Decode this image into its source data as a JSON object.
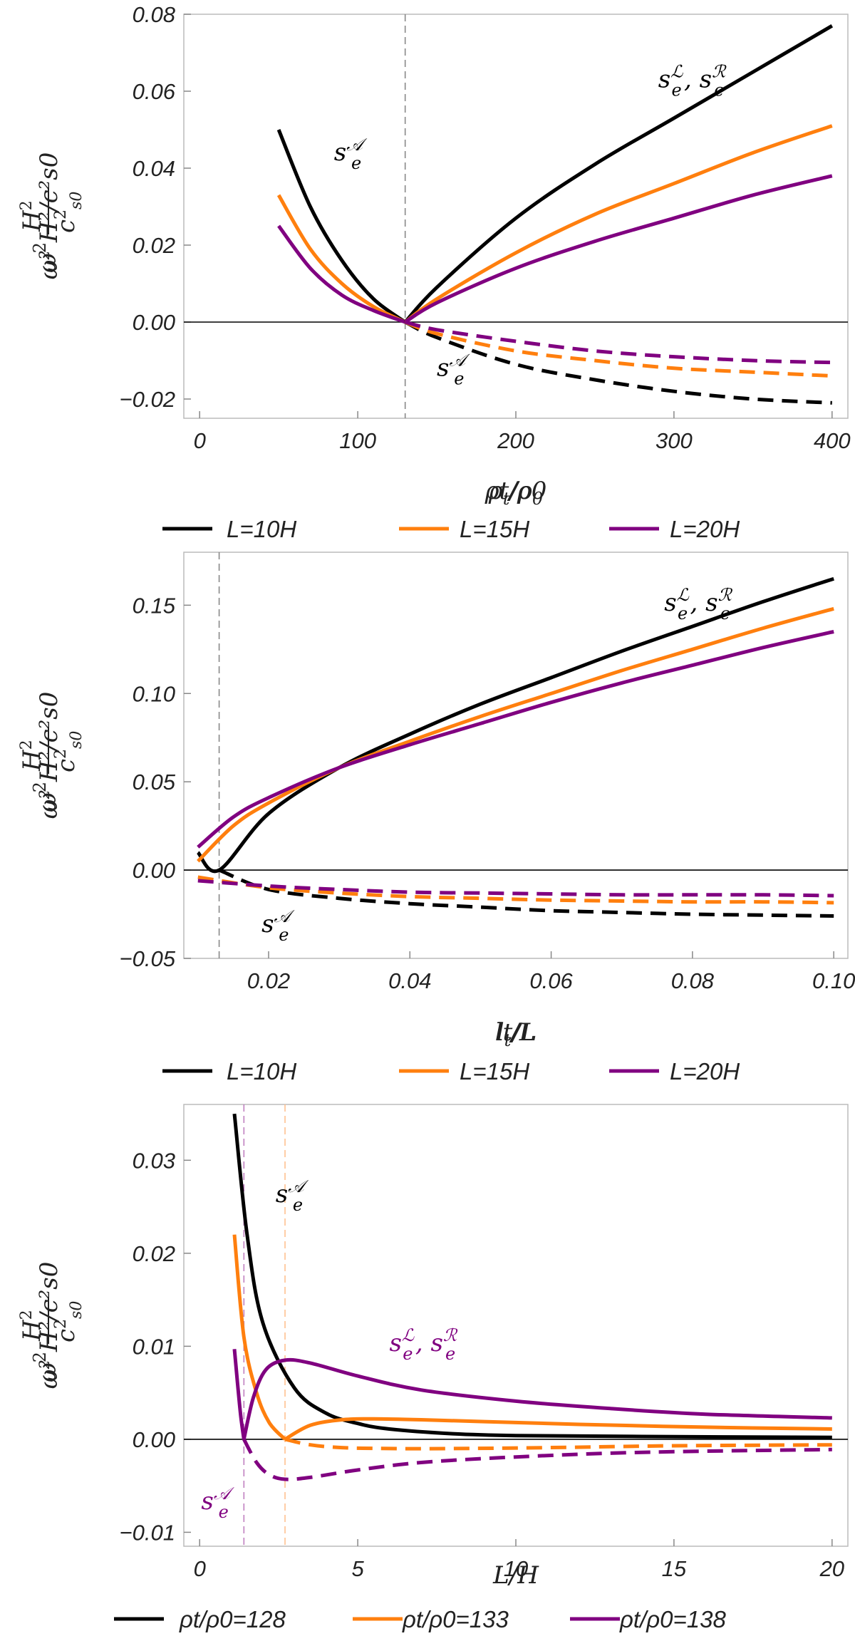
{
  "chart_data": [
    {
      "type": "line",
      "xlabel": "ρt/ρ0",
      "ylabel": "ω² H²/c²s0",
      "xlim": [
        -10,
        410
      ],
      "ylim": [
        -0.025,
        0.08
      ],
      "xticks": [
        0,
        100,
        200,
        300,
        400
      ],
      "xtick_labels": [
        "0",
        "100",
        "200",
        "300",
        "400"
      ],
      "yticks": [
        -0.02,
        0.0,
        0.02,
        0.04,
        0.06,
        0.08
      ],
      "ytick_labels": [
        "−0.02",
        "0.00",
        "0.02",
        "0.04",
        "0.06",
        "0.08"
      ],
      "vline": 130,
      "legend": {
        "position": "below",
        "entries": [
          {
            "label": "L=10H",
            "color": "#000000"
          },
          {
            "label": "L=15H",
            "color": "#ff7f0e"
          },
          {
            "label": "L=20H",
            "color": "#800080"
          }
        ]
      },
      "series": [
        {
          "name": "L=10H sA",
          "color": "#000000",
          "dash": false,
          "x": [
            50,
            70,
            90,
            110,
            130
          ],
          "y": [
            0.05,
            0.03,
            0.016,
            0.006,
            0
          ]
        },
        {
          "name": "L=15H sA",
          "color": "#ff7f0e",
          "dash": false,
          "x": [
            50,
            70,
            90,
            110,
            130
          ],
          "y": [
            0.033,
            0.019,
            0.01,
            0.004,
            0
          ]
        },
        {
          "name": "L=20H sA",
          "color": "#800080",
          "dash": false,
          "x": [
            50,
            70,
            90,
            110,
            130
          ],
          "y": [
            0.025,
            0.014,
            0.007,
            0.003,
            0
          ]
        },
        {
          "name": "L=10H sL,sR",
          "color": "#000000",
          "dash": false,
          "x": [
            130,
            150,
            200,
            250,
            300,
            350,
            400
          ],
          "y": [
            0,
            0.009,
            0.027,
            0.041,
            0.053,
            0.065,
            0.077
          ]
        },
        {
          "name": "L=15H sL,sR",
          "color": "#ff7f0e",
          "dash": false,
          "x": [
            130,
            150,
            200,
            250,
            300,
            350,
            400
          ],
          "y": [
            0,
            0.006,
            0.018,
            0.028,
            0.036,
            0.044,
            0.051
          ]
        },
        {
          "name": "L=20H sL,sR",
          "color": "#800080",
          "dash": false,
          "x": [
            130,
            150,
            200,
            250,
            300,
            350,
            400
          ],
          "y": [
            0,
            0.005,
            0.014,
            0.021,
            0.027,
            0.033,
            0.038
          ]
        },
        {
          "name": "L=10H sA dashed",
          "color": "#000000",
          "dash": true,
          "x": [
            130,
            150,
            200,
            250,
            300,
            350,
            400
          ],
          "y": [
            0,
            -0.004,
            -0.011,
            -0.015,
            -0.018,
            -0.02,
            -0.021
          ]
        },
        {
          "name": "L=15H sA dashed",
          "color": "#ff7f0e",
          "dash": true,
          "x": [
            130,
            150,
            200,
            250,
            300,
            350,
            400
          ],
          "y": [
            0,
            -0.003,
            -0.0075,
            -0.01,
            -0.012,
            -0.013,
            -0.014
          ]
        },
        {
          "name": "L=20H sA dashed",
          "color": "#800080",
          "dash": true,
          "x": [
            130,
            150,
            200,
            250,
            300,
            350,
            400
          ],
          "y": [
            0,
            -0.002,
            -0.005,
            -0.0075,
            -0.009,
            -0.01,
            -0.0105
          ]
        }
      ],
      "annotations": [
        {
          "text": "sA_e",
          "x": 85,
          "y": 0.042,
          "color": "#000000"
        },
        {
          "text": "sL_e, sR_e",
          "x": 290,
          "y": 0.061,
          "color": "#000000"
        },
        {
          "text": "sA_e",
          "x": 150,
          "y": -0.014,
          "color": "#000000"
        }
      ]
    },
    {
      "type": "line",
      "xlabel": "lt/L",
      "ylabel": "ω² H²/c²s0",
      "xlim": [
        0.008,
        0.102
      ],
      "ylim": [
        -0.05,
        0.18
      ],
      "xticks": [
        0.02,
        0.04,
        0.06,
        0.08,
        0.1
      ],
      "xtick_labels": [
        "0.02",
        "0.04",
        "0.06",
        "0.08",
        "0.10"
      ],
      "yticks": [
        -0.05,
        0.0,
        0.05,
        0.1,
        0.15
      ],
      "ytick_labels": [
        "−0.05",
        "0.00",
        "0.05",
        "0.10",
        "0.15"
      ],
      "vline": 0.013,
      "legend": {
        "position": "below",
        "entries": [
          {
            "label": "L=10H",
            "color": "#000000"
          },
          {
            "label": "L=15H",
            "color": "#ff7f0e"
          },
          {
            "label": "L=20H",
            "color": "#800080"
          }
        ]
      },
      "series": [
        {
          "name": "L=10H solid",
          "color": "#000000",
          "dash": false,
          "x": [
            0.01,
            0.013,
            0.02,
            0.03,
            0.04,
            0.05,
            0.06,
            0.07,
            0.08,
            0.09,
            0.1
          ],
          "y": [
            0.01,
            0,
            0.032,
            0.058,
            0.077,
            0.094,
            0.109,
            0.124,
            0.138,
            0.152,
            0.165
          ]
        },
        {
          "name": "L=15H solid",
          "color": "#ff7f0e",
          "dash": false,
          "x": [
            0.01,
            0.015,
            0.02,
            0.03,
            0.04,
            0.05,
            0.06,
            0.07,
            0.08,
            0.09,
            0.1
          ],
          "y": [
            0.005,
            0.025,
            0.038,
            0.058,
            0.073,
            0.087,
            0.1,
            0.113,
            0.125,
            0.137,
            0.148
          ]
        },
        {
          "name": "L=20H solid",
          "color": "#800080",
          "dash": false,
          "x": [
            0.01,
            0.015,
            0.02,
            0.03,
            0.04,
            0.05,
            0.06,
            0.07,
            0.08,
            0.09,
            0.1
          ],
          "y": [
            0.013,
            0.03,
            0.041,
            0.058,
            0.071,
            0.083,
            0.095,
            0.106,
            0.116,
            0.126,
            0.135
          ]
        },
        {
          "name": "L=10H dashed",
          "color": "#000000",
          "dash": true,
          "x": [
            0.013,
            0.02,
            0.03,
            0.04,
            0.05,
            0.06,
            0.07,
            0.08,
            0.09,
            0.1
          ],
          "y": [
            0,
            -0.011,
            -0.016,
            -0.019,
            -0.021,
            -0.023,
            -0.024,
            -0.025,
            -0.0255,
            -0.026
          ]
        },
        {
          "name": "L=15H dashed",
          "color": "#ff7f0e",
          "dash": true,
          "x": [
            0.01,
            0.02,
            0.03,
            0.04,
            0.05,
            0.06,
            0.07,
            0.08,
            0.09,
            0.1
          ],
          "y": [
            -0.004,
            -0.01,
            -0.013,
            -0.015,
            -0.016,
            -0.017,
            -0.0175,
            -0.018,
            -0.018,
            -0.0185
          ]
        },
        {
          "name": "L=20H dashed",
          "color": "#800080",
          "dash": true,
          "x": [
            0.01,
            0.02,
            0.03,
            0.04,
            0.05,
            0.06,
            0.07,
            0.08,
            0.09,
            0.1
          ],
          "y": [
            -0.006,
            -0.009,
            -0.011,
            -0.0125,
            -0.013,
            -0.0135,
            -0.014,
            -0.014,
            -0.014,
            -0.0145
          ]
        }
      ],
      "annotations": [
        {
          "text": "sL_e, sR_e",
          "x": 0.076,
          "y": 0.147,
          "color": "#000000"
        },
        {
          "text": "sA_e",
          "x": 0.019,
          "y": -0.035,
          "color": "#000000"
        }
      ]
    },
    {
      "type": "line",
      "xlabel": "L/H",
      "ylabel": "ω² H²/c²s0",
      "xlim": [
        -0.5,
        20.5
      ],
      "ylim": [
        -0.0115,
        0.036
      ],
      "xticks": [
        0,
        5,
        10,
        15,
        20
      ],
      "xtick_labels": [
        "0",
        "5",
        "10",
        "15",
        "20"
      ],
      "yticks": [
        -0.01,
        0.0,
        0.01,
        0.02,
        0.03
      ],
      "ytick_labels": [
        "−0.01",
        "0.00",
        "0.01",
        "0.02",
        "0.03"
      ],
      "vlines": [
        {
          "x": 1.4,
          "color": "#c080c0"
        },
        {
          "x": 2.7,
          "color": "#ffc090"
        }
      ],
      "legend": {
        "position": "below",
        "entries": [
          {
            "label": "ρt/ρ0=128",
            "color": "#000000"
          },
          {
            "label": "ρt/ρ0=133",
            "color": "#ff7f0e"
          },
          {
            "label": "ρt/ρ0=138",
            "color": "#800080"
          }
        ]
      },
      "series": [
        {
          "name": "ρt/ρ0=128 solid",
          "color": "#000000",
          "dash": false,
          "x": [
            1.1,
            1.5,
            2,
            3,
            4,
            5,
            6,
            8,
            10,
            14,
            20
          ],
          "y": [
            0.035,
            0.022,
            0.0125,
            0.0055,
            0.0028,
            0.0017,
            0.0011,
            0.0006,
            0.0004,
            0.0003,
            0.0002
          ]
        },
        {
          "name": "ρt/ρ0=133 solid A",
          "color": "#ff7f0e",
          "dash": false,
          "x": [
            1.1,
            1.4,
            1.8,
            2.2,
            2.7
          ],
          "y": [
            0.022,
            0.011,
            0.005,
            0.0018,
            0
          ]
        },
        {
          "name": "ρt/ρ0=133 solid B",
          "color": "#ff7f0e",
          "dash": false,
          "x": [
            2.7,
            3.5,
            4.5,
            5.5,
            7,
            9,
            12,
            16,
            20
          ],
          "y": [
            0,
            0.0015,
            0.0021,
            0.0022,
            0.0021,
            0.0019,
            0.0016,
            0.0013,
            0.0011
          ]
        },
        {
          "name": "ρt/ρ0=133 dashed",
          "color": "#ff7f0e",
          "dash": true,
          "x": [
            2.7,
            3.5,
            4.5,
            6,
            8,
            11,
            15,
            20
          ],
          "y": [
            0,
            -0.0006,
            -0.0009,
            -0.001,
            -0.001,
            -0.0009,
            -0.0007,
            -0.0006
          ]
        },
        {
          "name": "ρt/ρ0=138 solid A",
          "color": "#800080",
          "dash": false,
          "x": [
            1.1,
            1.2,
            1.3,
            1.4
          ],
          "y": [
            0.0097,
            0.006,
            0.0025,
            0
          ]
        },
        {
          "name": "ρt/ρ0=138 solid B",
          "color": "#800080",
          "dash": false,
          "x": [
            1.4,
            1.7,
            2.1,
            2.7,
            3.5,
            5,
            7,
            10,
            13,
            16,
            20
          ],
          "y": [
            0,
            0.0045,
            0.0075,
            0.0085,
            0.0082,
            0.0068,
            0.0053,
            0.0041,
            0.0033,
            0.0027,
            0.0023
          ]
        },
        {
          "name": "ρt/ρ0=138 dashed",
          "color": "#800080",
          "dash": true,
          "x": [
            1.4,
            1.8,
            2.2,
            2.7,
            3.5,
            5,
            7,
            10,
            14,
            20
          ],
          "y": [
            0,
            -0.0025,
            -0.0038,
            -0.0043,
            -0.0041,
            -0.0033,
            -0.0025,
            -0.0019,
            -0.0014,
            -0.0011
          ]
        }
      ],
      "annotations": [
        {
          "text": "sA_e",
          "x": 2.4,
          "y": 0.0255,
          "color": "#000000"
        },
        {
          "text": "sL_e,sR_e",
          "x": 6.0,
          "y": 0.0095,
          "color": "#800080"
        },
        {
          "text": "sA_e",
          "x": 0.05,
          "y": -0.0075,
          "color": "#800080"
        }
      ]
    }
  ]
}
